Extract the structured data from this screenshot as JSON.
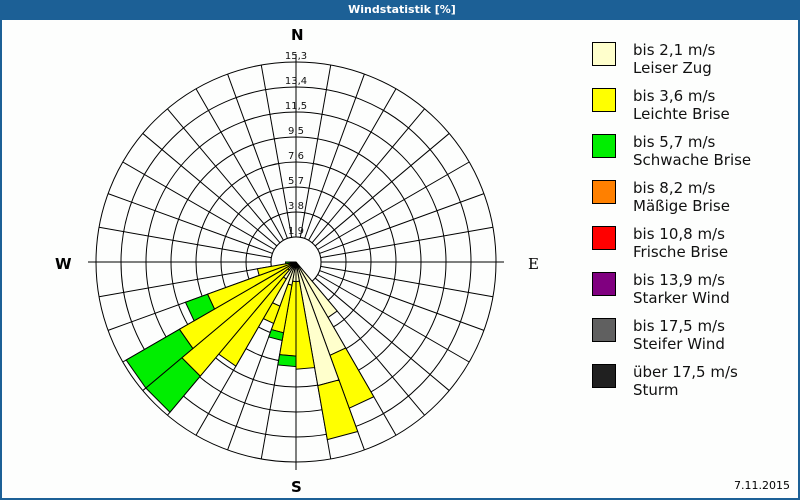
{
  "window": {
    "title": "Windstatistik [%]",
    "date": "7.11.2015"
  },
  "compass": {
    "n": "N",
    "e": "E",
    "s": "S",
    "w": "W"
  },
  "legend": [
    {
      "line1": "bis 2,1 m/s",
      "line2": "Leiser Zug",
      "color": "#ffffcc"
    },
    {
      "line1": "bis 3,6 m/s",
      "line2": "Leichte Brise",
      "color": "#ffff00"
    },
    {
      "line1": "bis 5,7 m/s",
      "line2": "Schwache Brise",
      "color": "#00ee00"
    },
    {
      "line1": "bis 8,2 m/s",
      "line2": "Mäßige Brise",
      "color": "#ff8000"
    },
    {
      "line1": "bis 10,8 m/s",
      "line2": "Frische Brise",
      "color": "#ff0000"
    },
    {
      "line1": "bis 13,9 m/s",
      "line2": "Starker Wind",
      "color": "#800080"
    },
    {
      "line1": "bis 17,5 m/s",
      "line2": "Steifer Wind",
      "color": "#606060"
    },
    {
      "line1": "über 17,5 m/s",
      "line2": "Sturm",
      "color": "#202020"
    }
  ],
  "chart_data": {
    "type": "polar-stacked-bar (wind rose)",
    "title": "Windstatistik [%]",
    "radial_ticks": [
      "1,9",
      "3,8",
      "5,7",
      "7,6",
      "9,5",
      "11,5",
      "13,4",
      "15,3"
    ],
    "radial_max": 15.3,
    "sector_width_deg": 10,
    "series_names": [
      "bis 2,1 m/s",
      "bis 3,6 m/s",
      "bis 5,7 m/s",
      "bis 8,2 m/s",
      "bis 10,8 m/s",
      "bis 13,9 m/s",
      "bis 17,5 m/s",
      "über 17,5 m/s"
    ],
    "sectors": [
      {
        "dir_deg": 145,
        "cumulative": [
          4.9,
          4.9,
          4.9
        ]
      },
      {
        "dir_deg": 155,
        "cumulative": [
          7.6,
          11.9,
          11.9
        ]
      },
      {
        "dir_deg": 165,
        "cumulative": [
          9.6,
          13.8,
          13.8
        ]
      },
      {
        "dir_deg": 175,
        "cumulative": [
          1.5,
          8.2,
          8.2
        ]
      },
      {
        "dir_deg": 185,
        "cumulative": [
          1.5,
          7.2,
          8.0
        ]
      },
      {
        "dir_deg": 195,
        "cumulative": [
          1.8,
          5.5,
          6.1
        ]
      },
      {
        "dir_deg": 205,
        "cumulative": [
          3.6,
          5.0,
          5.0
        ]
      },
      {
        "dir_deg": 215,
        "cumulative": [
          1.5,
          9.2,
          9.2
        ]
      },
      {
        "dir_deg": 225,
        "cumulative": [
          0.8,
          11.4,
          15.0
        ]
      },
      {
        "dir_deg": 235,
        "cumulative": [
          0.5,
          10.3,
          15.0
        ]
      },
      {
        "dir_deg": 245,
        "cumulative": [
          0.3,
          7.2,
          9.0
        ]
      },
      {
        "dir_deg": 255,
        "cumulative": [
          0.2,
          3.0,
          3.0
        ]
      },
      {
        "dir_deg": 265,
        "cumulative": [
          0.0,
          0.0,
          0.8
        ]
      }
    ],
    "legend_position": "right"
  }
}
